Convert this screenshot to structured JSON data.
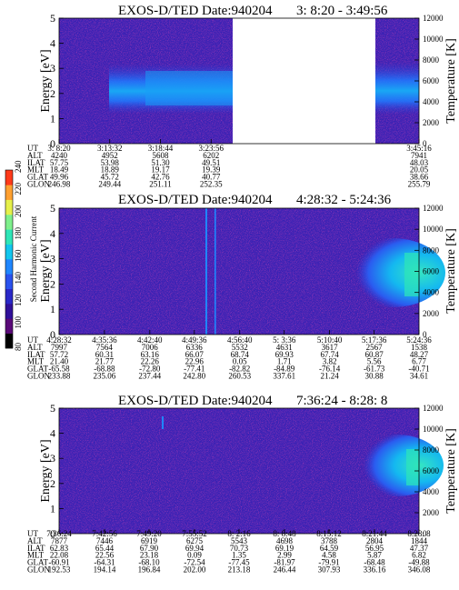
{
  "chart_data": [
    {
      "type": "heatmap",
      "title": "EXOS-D/TED",
      "date_text": "Date:940204",
      "time_range": "3: 8:20 - 3:49:56",
      "ylabel": "Energy [eV]",
      "ylabel_right": "Temperature [K]",
      "ylim": [
        0,
        5
      ],
      "yticks": [
        "0",
        "1",
        "2",
        "3",
        "4",
        "5"
      ],
      "ylim_right": [
        0,
        12000
      ],
      "yticks_right": [
        "0",
        "2000",
        "4000",
        "6000",
        "8000",
        "10000",
        "12000"
      ],
      "data_gap": true,
      "row_labels": [
        "UT",
        "ALT",
        "ILAT",
        "MLT",
        "GLAT",
        "GLON"
      ],
      "columns": [
        {
          "UT": "3: 8:20",
          "ALT": "4240",
          "ILAT": "57.75",
          "MLT": "18.49",
          "GLAT": "49.96",
          "GLON": "246.98"
        },
        {
          "UT": "3:13:32",
          "ALT": "4952",
          "ILAT": "53.98",
          "MLT": "18.89",
          "GLAT": "45.72",
          "GLON": "249.44"
        },
        {
          "UT": "3:18:44",
          "ALT": "5608",
          "ILAT": "51.30",
          "MLT": "19.17",
          "GLAT": "42.76",
          "GLON": "251.11"
        },
        {
          "UT": "3:23:56",
          "ALT": "6202",
          "ILAT": "49.51",
          "MLT": "19.39",
          "GLAT": "40.77",
          "GLON": "252.35"
        },
        {
          "UT": "3:45:16",
          "ALT": "7941",
          "ILAT": "48.03",
          "MLT": "20.05",
          "GLAT": "38.66",
          "GLON": "255.79"
        }
      ]
    },
    {
      "type": "heatmap",
      "title": "EXOS-D/TED",
      "date_text": "Date:940204",
      "time_range": "4:28:32 - 5:24:36",
      "ylabel": "Energy [eV]",
      "ylabel_right": "Temperature [K]",
      "ylim": [
        0,
        5
      ],
      "yticks": [
        "0",
        "1",
        "2",
        "3",
        "4",
        "5"
      ],
      "ylim_right": [
        0,
        12000
      ],
      "yticks_right": [
        "0",
        "2000",
        "4000",
        "6000",
        "8000",
        "10000",
        "12000"
      ],
      "row_labels": [
        "UT",
        "ALT",
        "ILAT",
        "MLT",
        "GLAT",
        "GLON"
      ],
      "columns": [
        {
          "UT": "4:28:32",
          "ALT": "7997",
          "ILAT": "57.72",
          "MLT": "21.40",
          "GLAT": "-65.58",
          "GLON": "233.88"
        },
        {
          "UT": "4:35:36",
          "ALT": "7564",
          "ILAT": "60.31",
          "MLT": "21.77",
          "GLAT": "-68.88",
          "GLON": "235.06"
        },
        {
          "UT": "4:42:40",
          "ALT": "7006",
          "ILAT": "63.16",
          "MLT": "22.26",
          "GLAT": "-72.80",
          "GLON": "237.44"
        },
        {
          "UT": "4:49:36",
          "ALT": "6336",
          "ILAT": "66.07",
          "MLT": "22.96",
          "GLAT": "-77.41",
          "GLON": "242.80"
        },
        {
          "UT": "4:56:40",
          "ALT": "5532",
          "ILAT": "68.74",
          "MLT": "0.05",
          "GLAT": "-82.82",
          "GLON": "260.53"
        },
        {
          "UT": "5: 3:36",
          "ALT": "4631",
          "ILAT": "69.93",
          "MLT": "1.71",
          "GLAT": "-84.89",
          "GLON": "337.61"
        },
        {
          "UT": "5:10:40",
          "ALT": "3617",
          "ILAT": "67.74",
          "MLT": "3.82",
          "GLAT": "-76.14",
          "GLON": "21.24"
        },
        {
          "UT": "5:17:36",
          "ALT": "2567",
          "ILAT": "60.87",
          "MLT": "5.56",
          "GLAT": "-61.73",
          "GLON": "30.88"
        },
        {
          "UT": "5:24:36",
          "ALT": "1538",
          "ILAT": "48.27",
          "MLT": "6.77",
          "GLAT": "-40.71",
          "GLON": "34.61"
        }
      ]
    },
    {
      "type": "heatmap",
      "title": "EXOS-D/TED",
      "date_text": "Date:940204",
      "time_range": "7:36:24 - 8:28: 8",
      "ylabel": "Energy [eV]",
      "ylabel_right": "Temperature [K]",
      "ylim": [
        0,
        5
      ],
      "yticks": [
        "0",
        "1",
        "2",
        "3",
        "4",
        "5"
      ],
      "ylim_right": [
        0,
        12000
      ],
      "yticks_right": [
        "0",
        "2000",
        "4000",
        "6000",
        "8000",
        "10000",
        "12000"
      ],
      "row_labels": [
        "UT",
        "ALT",
        "ILAT",
        "MLT",
        "GLAT",
        "GLON"
      ],
      "columns": [
        {
          "UT": "7:36:24",
          "ALT": "7877",
          "ILAT": "62.83",
          "MLT": "22.08",
          "GLAT": "-60.91",
          "GLON": "192.53"
        },
        {
          "UT": "7:42:56",
          "ALT": "7446",
          "ILAT": "65.44",
          "MLT": "22.56",
          "GLAT": "-64.31",
          "GLON": "194.14"
        },
        {
          "UT": "7:49:20",
          "ALT": "6919",
          "ILAT": "67.90",
          "MLT": "23.18",
          "GLAT": "-68.10",
          "GLON": "196.84"
        },
        {
          "UT": "7:55:52",
          "ALT": "6275",
          "ILAT": "69.94",
          "MLT": "0.09",
          "GLAT": "-72.54",
          "GLON": "202.00"
        },
        {
          "UT": "8: 2:16",
          "ALT": "5543",
          "ILAT": "70.73",
          "MLT": "1.35",
          "GLAT": "-77.45",
          "GLON": "213.18"
        },
        {
          "UT": "8: 8:48",
          "ALT": "4698",
          "ILAT": "69.19",
          "MLT": "2.99",
          "GLAT": "-81.97",
          "GLON": "246.44"
        },
        {
          "UT": "8:15:12",
          "ALT": "3788",
          "ILAT": "64.59",
          "MLT": "4.58",
          "GLAT": "-79.91",
          "GLON": "307.93"
        },
        {
          "UT": "8:21:44",
          "ALT": "2804",
          "ILAT": "56.95",
          "MLT": "5.87",
          "GLAT": "-68.48",
          "GLON": "336.16"
        },
        {
          "UT": "8:28: 8",
          "ALT": "1844",
          "ILAT": "47.37",
          "MLT": "6.82",
          "GLAT": "-49.88",
          "GLON": "346.08"
        }
      ]
    }
  ],
  "colorbar": {
    "label": "Second Harmonic Current",
    "ticks": [
      "80",
      "100",
      "120",
      "140",
      "160",
      "180",
      "200",
      "220",
      "240"
    ],
    "colors": [
      "#000000",
      "#5a0a78",
      "#30109a",
      "#2a28c8",
      "#2a52ee",
      "#1f86ff",
      "#12c6ee",
      "#2ee6b8",
      "#7ef08c",
      "#e6f04a",
      "#ffa030",
      "#ff3a1a"
    ]
  }
}
